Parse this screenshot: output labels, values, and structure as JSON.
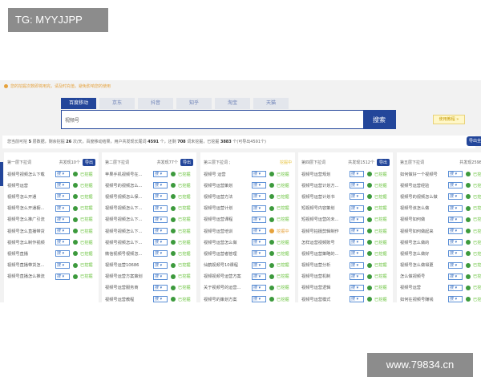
{
  "overlay": {
    "tg_label": "TG: MYYJJPP",
    "site_label": "www.79834.cn"
  },
  "notice": "您的挖掘次数即将用完，请及时充值，避免影响您的使用",
  "tabs": [
    "百度移动",
    "京东",
    "抖音",
    "知乎",
    "淘宝",
    "天猫"
  ],
  "active_tab": 0,
  "search": {
    "value": "视频号",
    "button": "搜索"
  },
  "tutorial_label": "使用教程 »",
  "stats": {
    "p1": "您当前可挖 ",
    "levels": "5",
    "p2": " 层数据，剩余挖掘 ",
    "remaining": "26",
    "p3": " 次/天，百度移动结果，用户共发现长尾词 ",
    "found": "4591",
    "p4": " 个，还剩 ",
    "left": "708",
    "p5": " 词未挖掘，已挖掘 ",
    "mined": "3883",
    "p6": " 个(可导出4591个)"
  },
  "export_all_label": "导出全部",
  "select_label": "搜 ▾",
  "status_colors": {
    "done": "#67c23a",
    "mining": "#e6a23c"
  },
  "columns": [
    {
      "title": "第一层下拉词",
      "count": "共发现10个",
      "export": "导出",
      "rows": [
        [
          "视频号视频怎么下载",
          "已挖掘"
        ],
        [
          "视频号运营",
          "已挖掘"
        ],
        [
          "视频号怎么开通",
          "已挖掘"
        ],
        [
          "视频号怎么开通橱...",
          "已挖掘"
        ],
        [
          "视频号怎么推广引流",
          "已挖掘"
        ],
        [
          "视频号怎么直播带货",
          "已挖掘"
        ],
        [
          "视频号怎么制作视频",
          "已挖掘"
        ],
        [
          "视频号直播",
          "已挖掘"
        ],
        [
          "视频号直播带货怎...",
          "已挖掘"
        ],
        [
          "视频号直播怎么推流",
          "已挖掘"
        ]
      ]
    },
    {
      "title": "第二层下拉词",
      "count": "共发现77个",
      "export": "导出",
      "rows": [
        [
          "苹果手机视频号在...",
          "已挖掘"
        ],
        [
          "视频号的视频怎么...",
          "已挖掘"
        ],
        [
          "视频号视频怎么保...",
          "已挖掘"
        ],
        [
          "视频号视频怎么下...",
          "已挖掘"
        ],
        [
          "视频号视频怎么下...",
          "已挖掘"
        ],
        [
          "视频号视频怎么下...",
          "已挖掘"
        ],
        [
          "视频号视频怎么下...",
          "已挖掘"
        ],
        [
          "微信视频号视频怎...",
          "已挖掘"
        ],
        [
          "视频号运营10686",
          "已挖掘"
        ],
        [
          "视频号运营方案策划",
          "已挖掘"
        ],
        [
          "视频号运营服务商",
          "已挖掘"
        ],
        [
          "视频号运营教程",
          "已挖掘"
        ]
      ]
    },
    {
      "title": "第三层下拉词 ;",
      "mining": "挖掘中",
      "rows": [
        [
          "视频号 运营",
          "已挖掘"
        ],
        [
          "视频号运营策划",
          "已挖掘"
        ],
        [
          "视频号运营方法",
          "已挖掘"
        ],
        [
          "视频号运营计划",
          "已挖掘"
        ],
        [
          "视频号运营课程",
          "已挖掘"
        ],
        [
          "视频号运营培训",
          "挖掘中"
        ],
        [
          "视频号运营怎么做",
          "已挖掘"
        ],
        [
          "视频号运营者管理",
          "已挖掘"
        ],
        [
          "仙鹤视频号10课程",
          "已挖掘"
        ],
        [
          "视频视频号运营方案",
          "已挖掘"
        ],
        [
          "关于视频号的运营...",
          "已挖掘"
        ],
        [
          "视频号的策划方案",
          "已挖掘"
        ]
      ]
    },
    {
      "title": "第四层下拉词",
      "count": "共发现1512个",
      "export": "导出",
      "rows": [
        [
          "视频号运营规划",
          "已挖掘"
        ],
        [
          "视频号运营计划方...",
          "已挖掘"
        ],
        [
          "视频号运营计划书",
          "已挖掘"
        ],
        [
          "短视频号内容策划",
          "已挖掘"
        ],
        [
          "短视频号运营的未...",
          "已挖掘"
        ],
        [
          "视频号拍摄剪辑制作",
          "已挖掘"
        ],
        [
          "怎样运营视频账号",
          "已挖掘"
        ],
        [
          "视频号运营策略的...",
          "已挖掘"
        ],
        [
          "视频号运营分析",
          "已挖掘"
        ],
        [
          "视频号运营机制",
          "已挖掘"
        ],
        [
          "视频号运营逻辑",
          "已挖掘"
        ],
        [
          "视频号运营模式",
          "已挖掘"
        ]
      ]
    },
    {
      "title": "第五层下拉词",
      "count": "共发现2598个",
      "rows": [
        [
          "如何做好一个视频号",
          "已挖掘"
        ],
        [
          "视频号运营经验",
          "已挖掘"
        ],
        [
          "视频号的视频怎么做",
          "已挖掘"
        ],
        [
          "视频号该怎么做",
          "已挖掘"
        ],
        [
          "视频号如何做",
          "已挖掘"
        ],
        [
          "视频号如何做起来",
          "已挖掘"
        ],
        [
          "视频号怎么做的",
          "已挖掘"
        ],
        [
          "视频号怎么做好",
          "已挖掘"
        ],
        [
          "视频号怎么做得更",
          "已挖掘"
        ],
        [
          "怎么做视频号",
          "已挖掘"
        ],
        [
          "视频号运营",
          "已挖掘"
        ],
        [
          "如何在视频号赚钱",
          "已挖掘"
        ]
      ]
    }
  ]
}
